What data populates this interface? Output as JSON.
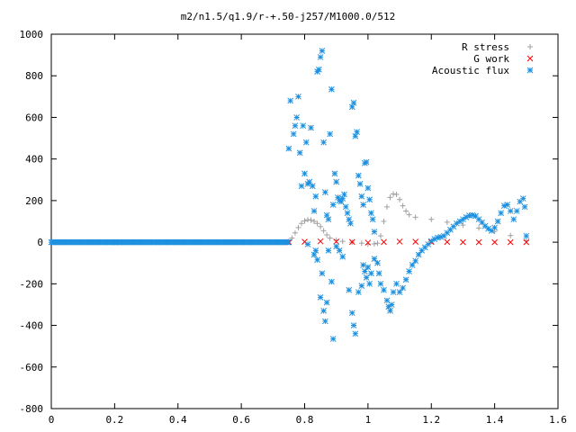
{
  "chart_data": {
    "type": "scatter",
    "title": "m2/n1.5/q1.9/r-+.50-j257/M1000.0/512",
    "xlabel": "",
    "ylabel": "",
    "xlim": [
      0,
      1.6
    ],
    "ylim": [
      -800,
      1000
    ],
    "xticks": [
      0,
      0.2,
      0.4,
      0.6,
      0.8,
      1,
      1.2,
      1.4,
      1.6
    ],
    "yticks": [
      -800,
      -600,
      -400,
      -200,
      0,
      200,
      400,
      600,
      800,
      1000
    ],
    "xtick_labels": [
      "0",
      "0.2",
      "0.4",
      "0.6",
      "0.8",
      "1",
      "1.2",
      "1.4",
      "1.6"
    ],
    "ytick_labels": [
      "-800",
      "-600",
      "-400",
      "-200",
      "0",
      "200",
      "400",
      "600",
      "800",
      "1000"
    ],
    "grid": false,
    "legend_position": "top-right",
    "series": [
      {
        "name": "R stress",
        "marker": "+",
        "color": "#a0a0a0",
        "points": [
          [
            0.75,
            5
          ],
          [
            0.76,
            20
          ],
          [
            0.77,
            45
          ],
          [
            0.78,
            70
          ],
          [
            0.79,
            90
          ],
          [
            0.8,
            102
          ],
          [
            0.81,
            108
          ],
          [
            0.82,
            106
          ],
          [
            0.83,
            100
          ],
          [
            0.84,
            90
          ],
          [
            0.85,
            75
          ],
          [
            0.86,
            55
          ],
          [
            0.87,
            35
          ],
          [
            0.88,
            20
          ],
          [
            0.9,
            10
          ],
          [
            0.92,
            4
          ],
          [
            0.95,
            0
          ],
          [
            0.98,
            -5
          ],
          [
            1.0,
            -10
          ],
          [
            1.02,
            -8
          ],
          [
            1.03,
            -5
          ],
          [
            1.04,
            30
          ],
          [
            1.05,
            100
          ],
          [
            1.06,
            170
          ],
          [
            1.07,
            215
          ],
          [
            1.08,
            232
          ],
          [
            1.09,
            230
          ],
          [
            1.1,
            205
          ],
          [
            1.11,
            175
          ],
          [
            1.12,
            150
          ],
          [
            1.13,
            132
          ],
          [
            1.15,
            120
          ],
          [
            1.2,
            110
          ],
          [
            1.25,
            96
          ],
          [
            1.3,
            82
          ],
          [
            1.35,
            68
          ],
          [
            1.4,
            52
          ],
          [
            1.45,
            32
          ],
          [
            1.5,
            8
          ]
        ]
      },
      {
        "name": "G work",
        "marker": "x",
        "color": "#ff0000",
        "points": [
          [
            0.75,
            0
          ],
          [
            0.8,
            2
          ],
          [
            0.85,
            4
          ],
          [
            0.9,
            3
          ],
          [
            0.95,
            1
          ],
          [
            1.0,
            -2
          ],
          [
            1.05,
            1
          ],
          [
            1.1,
            3
          ],
          [
            1.15,
            2
          ],
          [
            1.2,
            1
          ],
          [
            1.25,
            1
          ],
          [
            1.3,
            0
          ],
          [
            1.35,
            0
          ],
          [
            1.4,
            0
          ],
          [
            1.45,
            0
          ],
          [
            1.5,
            0
          ]
        ]
      },
      {
        "name": "Acoustic flux",
        "marker": "*",
        "color": "#1e90e0",
        "points": [
          [
            0.75,
            450
          ],
          [
            0.755,
            680
          ],
          [
            0.765,
            520
          ],
          [
            0.77,
            560
          ],
          [
            0.775,
            600
          ],
          [
            0.78,
            700
          ],
          [
            0.785,
            430
          ],
          [
            0.79,
            270
          ],
          [
            0.795,
            560
          ],
          [
            0.8,
            330
          ],
          [
            0.805,
            480
          ],
          [
            0.81,
            280
          ],
          [
            0.815,
            290
          ],
          [
            0.82,
            550
          ],
          [
            0.825,
            270
          ],
          [
            0.83,
            150
          ],
          [
            0.835,
            220
          ],
          [
            0.84,
            820
          ],
          [
            0.845,
            830
          ],
          [
            0.85,
            890
          ],
          [
            0.855,
            920
          ],
          [
            0.86,
            480
          ],
          [
            0.865,
            240
          ],
          [
            0.87,
            130
          ],
          [
            0.875,
            110
          ],
          [
            0.88,
            520
          ],
          [
            0.885,
            735
          ],
          [
            0.89,
            180
          ],
          [
            0.895,
            330
          ],
          [
            0.9,
            290
          ],
          [
            0.905,
            215
          ],
          [
            0.91,
            200
          ],
          [
            0.915,
            195
          ],
          [
            0.92,
            210
          ],
          [
            0.925,
            230
          ],
          [
            0.93,
            170
          ],
          [
            0.935,
            140
          ],
          [
            0.94,
            110
          ],
          [
            0.945,
            90
          ],
          [
            0.95,
            650
          ],
          [
            0.955,
            670
          ],
          [
            0.96,
            510
          ],
          [
            0.965,
            530
          ],
          [
            0.97,
            320
          ],
          [
            0.975,
            280
          ],
          [
            0.98,
            220
          ],
          [
            0.985,
            180
          ],
          [
            0.99,
            380
          ],
          [
            0.995,
            385
          ],
          [
            1.0,
            260
          ],
          [
            1.005,
            205
          ],
          [
            1.01,
            140
          ],
          [
            1.015,
            110
          ],
          [
            1.02,
            50
          ],
          [
            0.81,
            -10
          ],
          [
            0.83,
            -60
          ],
          [
            0.835,
            -40
          ],
          [
            0.84,
            -85
          ],
          [
            0.85,
            -265
          ],
          [
            0.855,
            -150
          ],
          [
            0.86,
            -330
          ],
          [
            0.865,
            -380
          ],
          [
            0.87,
            -290
          ],
          [
            0.875,
            -40
          ],
          [
            0.885,
            -190
          ],
          [
            0.89,
            -465
          ],
          [
            0.9,
            -20
          ],
          [
            0.91,
            -40
          ],
          [
            0.92,
            -70
          ],
          [
            0.94,
            -230
          ],
          [
            0.95,
            -340
          ],
          [
            0.955,
            -400
          ],
          [
            0.96,
            -440
          ],
          [
            0.97,
            -240
          ],
          [
            0.98,
            -210
          ],
          [
            0.985,
            -110
          ],
          [
            0.99,
            -140
          ],
          [
            0.995,
            -170
          ],
          [
            1.0,
            -120
          ],
          [
            1.005,
            -200
          ],
          [
            1.01,
            -150
          ],
          [
            1.02,
            -80
          ],
          [
            1.03,
            -100
          ],
          [
            1.035,
            -150
          ],
          [
            1.04,
            -200
          ],
          [
            1.05,
            -230
          ],
          [
            1.06,
            -280
          ],
          [
            1.065,
            -310
          ],
          [
            1.07,
            -330
          ],
          [
            1.075,
            -300
          ],
          [
            1.08,
            -240
          ],
          [
            1.09,
            -200
          ],
          [
            1.1,
            -240
          ],
          [
            1.11,
            -220
          ],
          [
            1.12,
            -180
          ],
          [
            1.13,
            -140
          ],
          [
            1.14,
            -110
          ],
          [
            1.15,
            -90
          ],
          [
            1.16,
            -60
          ],
          [
            1.17,
            -40
          ],
          [
            1.18,
            -25
          ],
          [
            1.19,
            -10
          ],
          [
            1.2,
            5
          ],
          [
            1.21,
            15
          ],
          [
            1.22,
            22
          ],
          [
            1.23,
            25
          ],
          [
            1.24,
            30
          ],
          [
            1.25,
            45
          ],
          [
            1.26,
            60
          ],
          [
            1.27,
            75
          ],
          [
            1.28,
            90
          ],
          [
            1.29,
            100
          ],
          [
            1.3,
            110
          ],
          [
            1.31,
            120
          ],
          [
            1.32,
            128
          ],
          [
            1.33,
            130
          ],
          [
            1.34,
            126
          ],
          [
            1.35,
            110
          ],
          [
            1.36,
            95
          ],
          [
            1.37,
            78
          ],
          [
            1.38,
            65
          ],
          [
            1.39,
            55
          ],
          [
            1.4,
            70
          ],
          [
            1.41,
            100
          ],
          [
            1.42,
            140
          ],
          [
            1.43,
            175
          ],
          [
            1.44,
            180
          ],
          [
            1.45,
            150
          ],
          [
            1.46,
            110
          ],
          [
            1.47,
            150
          ],
          [
            1.48,
            195
          ],
          [
            1.49,
            210
          ],
          [
            1.495,
            170
          ],
          [
            1.5,
            30
          ],
          [
            0.2,
            0
          ]
        ]
      }
    ],
    "flat_line": {
      "series_index": 2,
      "x_start": 0,
      "x_end": 0.75,
      "step": 0.0045,
      "y": 0
    }
  }
}
